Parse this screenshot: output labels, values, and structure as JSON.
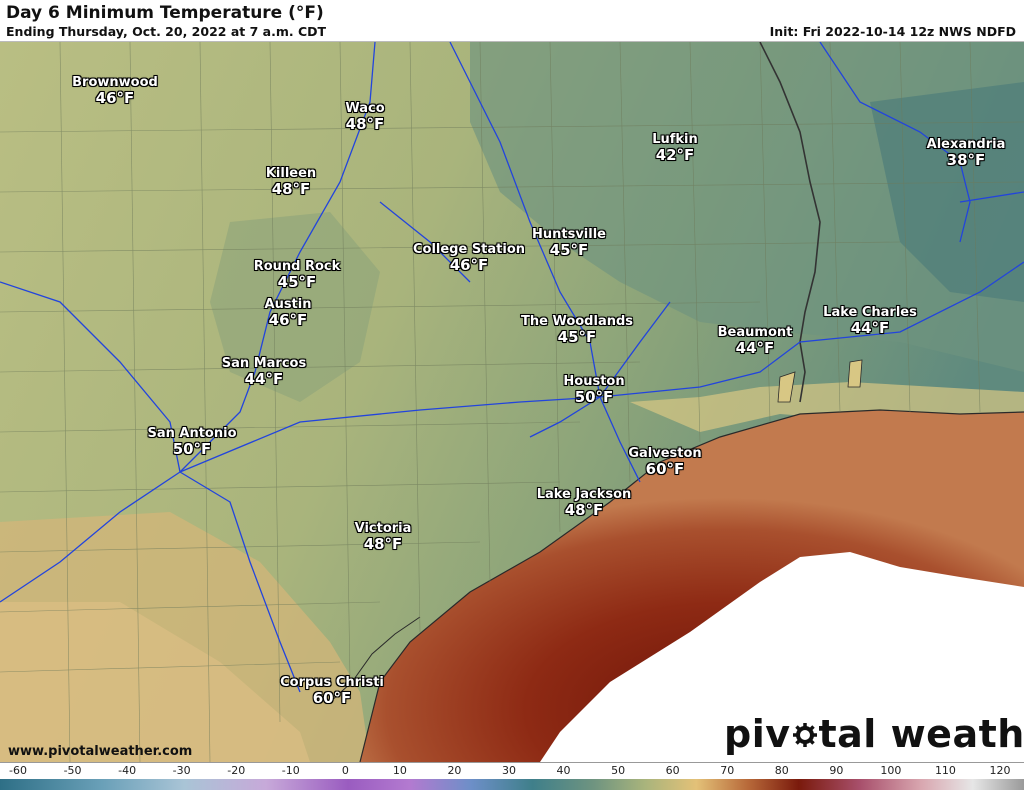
{
  "header": {
    "title": "Day 6 Minimum Temperature (°F)",
    "subtitle": "Ending Thursday, Oct. 20, 2022 at 7 a.m. CDT",
    "init": "Init: Fri 2022-10-14 12z NWS NDFD"
  },
  "cities": [
    {
      "name": "Brownwood",
      "temp": "46°F"
    },
    {
      "name": "Waco",
      "temp": "48°F"
    },
    {
      "name": "Killeen",
      "temp": "48°F"
    },
    {
      "name": "Lufkin",
      "temp": "42°F"
    },
    {
      "name": "Alexandria",
      "temp": "38°F"
    },
    {
      "name": "College Station",
      "temp": "46°F"
    },
    {
      "name": "Huntsville",
      "temp": "45°F"
    },
    {
      "name": "Round Rock",
      "temp": "45°F"
    },
    {
      "name": "Austin",
      "temp": "46°F"
    },
    {
      "name": "Lake Charles",
      "temp": "44°F"
    },
    {
      "name": "The Woodlands",
      "temp": "45°F"
    },
    {
      "name": "Beaumont",
      "temp": "44°F"
    },
    {
      "name": "San Marcos",
      "temp": "44°F"
    },
    {
      "name": "Houston",
      "temp": "50°F"
    },
    {
      "name": "San Antonio",
      "temp": "50°F"
    },
    {
      "name": "Galveston",
      "temp": "60°F"
    },
    {
      "name": "Lake Jackson",
      "temp": "48°F"
    },
    {
      "name": "Victoria",
      "temp": "48°F"
    },
    {
      "name": "Corpus Christi",
      "temp": "60°F"
    }
  ],
  "footer": {
    "website": "www.pivotalweather.com",
    "logo_left": "piv",
    "logo_right": "tal weather"
  },
  "colorbar": {
    "ticks": [
      "-60",
      "-50",
      "-40",
      "-30",
      "-20",
      "-10",
      "0",
      "10",
      "20",
      "30",
      "40",
      "50",
      "60",
      "70",
      "80",
      "90",
      "100",
      "110",
      "120"
    ],
    "colors": {
      "cold": "#4a7fa0",
      "purple": "#9a5cc0",
      "teal": "#3f7f8a",
      "green": "#8fa868",
      "tan": "#e3c178",
      "brown": "#8a2a14",
      "pink": "#d9a7b0",
      "gray": "#c8c8c8"
    }
  }
}
